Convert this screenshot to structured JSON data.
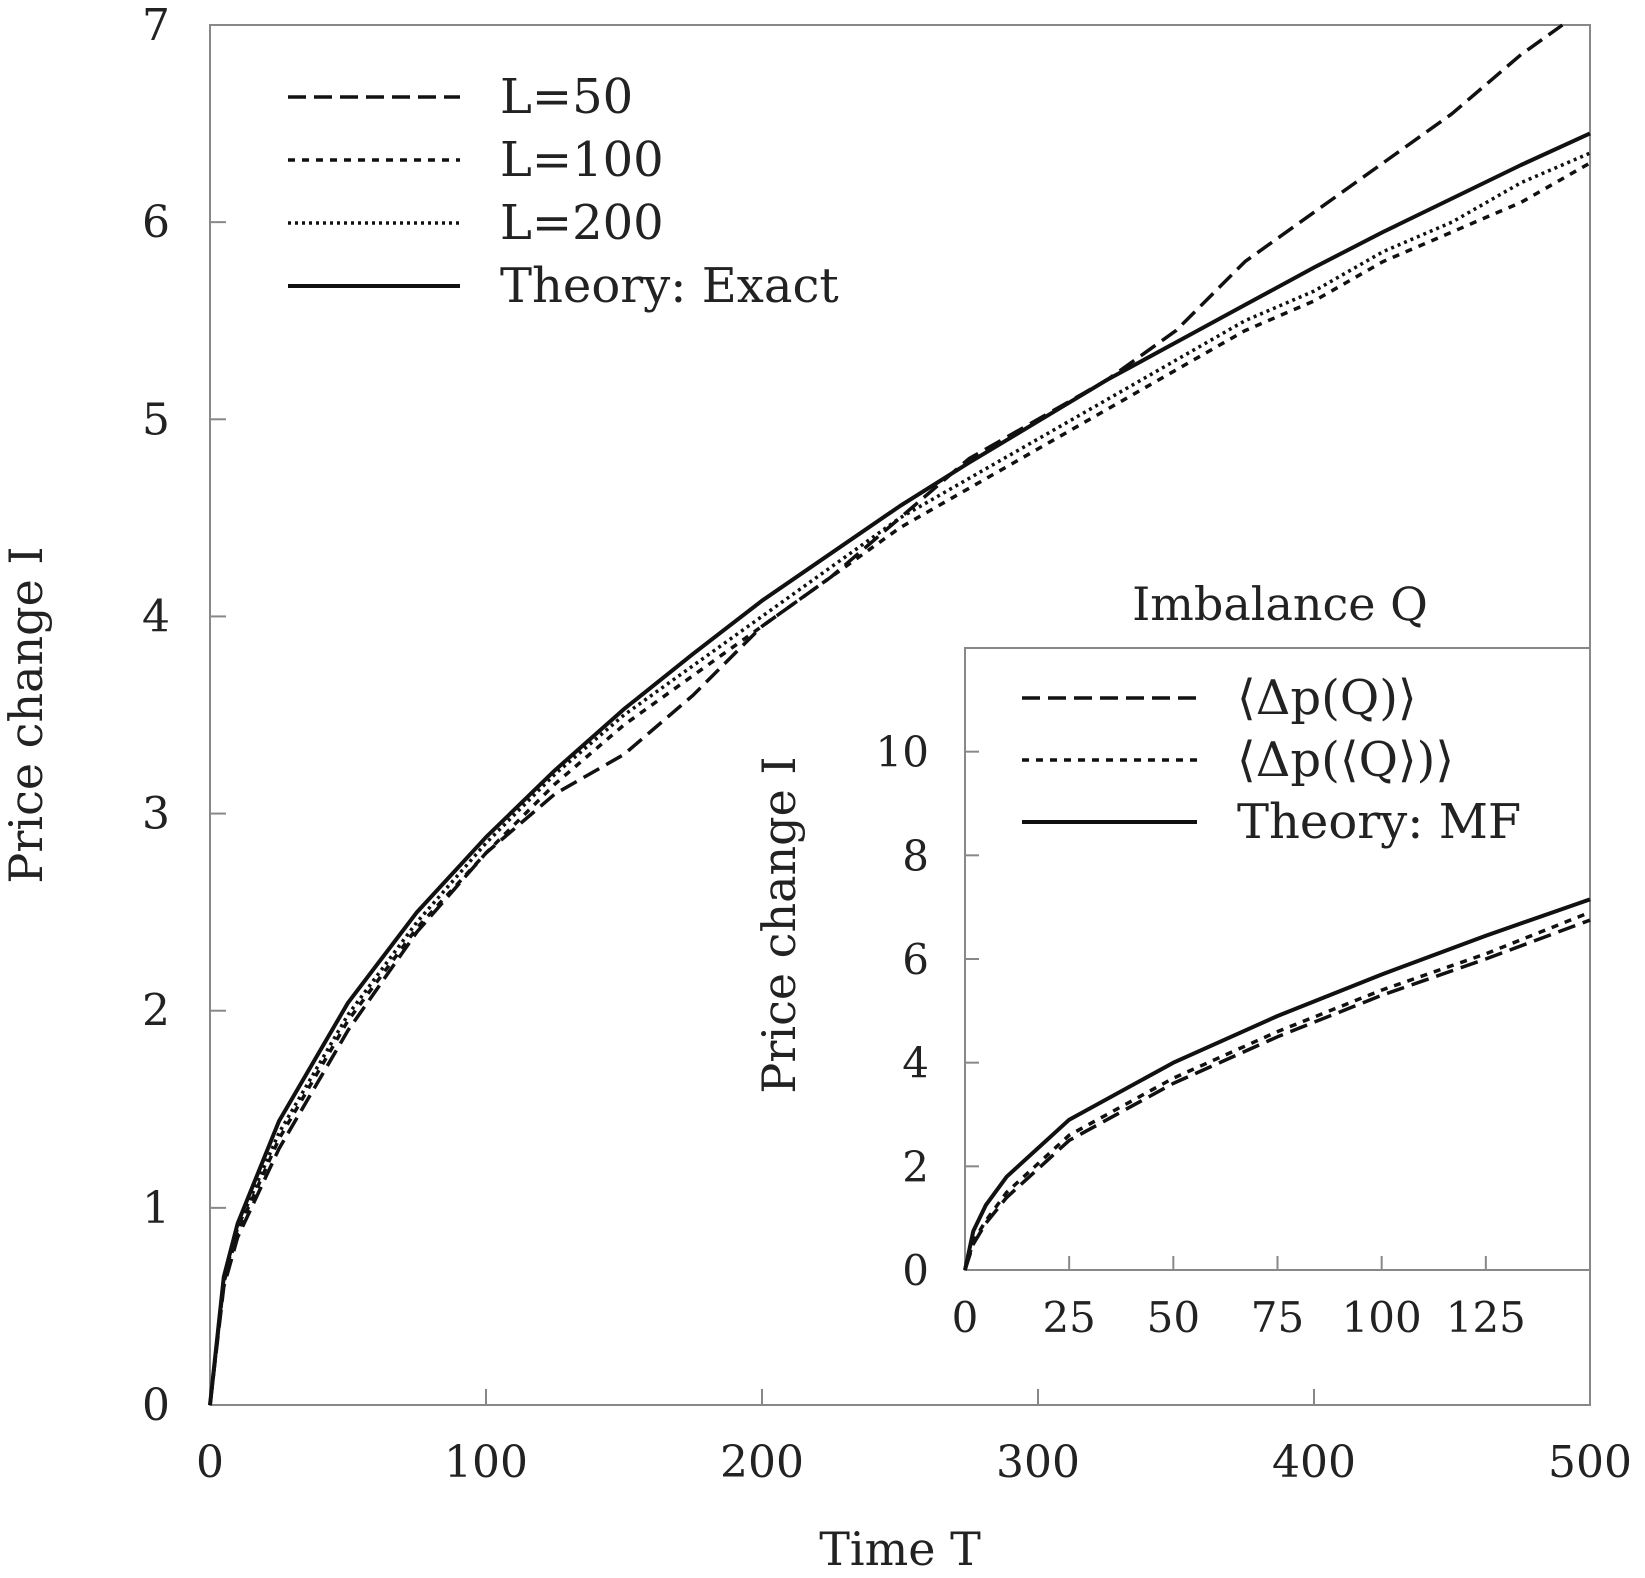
{
  "chart_data": [
    {
      "type": "line",
      "xlabel": "Time T",
      "ylabel": "Price change I",
      "xlim": [
        0,
        500
      ],
      "ylim": [
        0,
        7
      ],
      "xticks": [
        0,
        100,
        200,
        300,
        400,
        500
      ],
      "yticks": [
        0,
        1,
        2,
        3,
        4,
        5,
        6,
        7
      ],
      "grid": false,
      "legend_position": "top-left",
      "series": [
        {
          "name": "L=50",
          "dash": "dashed",
          "x": [
            0,
            5,
            10,
            25,
            50,
            75,
            100,
            125,
            150,
            175,
            200,
            225,
            250,
            275,
            300,
            325,
            350,
            375,
            400,
            425,
            450,
            475,
            490
          ],
          "y": [
            0,
            0.6,
            0.85,
            1.3,
            1.9,
            2.4,
            2.8,
            3.1,
            3.3,
            3.6,
            3.95,
            4.2,
            4.5,
            4.8,
            5.0,
            5.2,
            5.45,
            5.8,
            6.05,
            6.3,
            6.55,
            6.85,
            7.0
          ]
        },
        {
          "name": "L=100",
          "dash": "dotted",
          "x": [
            0,
            5,
            10,
            25,
            50,
            75,
            100,
            125,
            150,
            175,
            200,
            225,
            250,
            275,
            300,
            325,
            350,
            375,
            400,
            425,
            450,
            475,
            500
          ],
          "y": [
            0,
            0.62,
            0.88,
            1.35,
            1.95,
            2.42,
            2.8,
            3.15,
            3.45,
            3.7,
            3.95,
            4.2,
            4.45,
            4.65,
            4.85,
            5.05,
            5.25,
            5.45,
            5.6,
            5.8,
            5.95,
            6.1,
            6.3
          ]
        },
        {
          "name": "L=200",
          "dash": "fine-dotted",
          "x": [
            0,
            5,
            10,
            25,
            50,
            75,
            100,
            125,
            150,
            175,
            200,
            225,
            250,
            275,
            300,
            325,
            350,
            375,
            400,
            425,
            450,
            475,
            500
          ],
          "y": [
            0,
            0.64,
            0.9,
            1.38,
            1.98,
            2.45,
            2.85,
            3.2,
            3.5,
            3.75,
            4.0,
            4.25,
            4.5,
            4.7,
            4.9,
            5.1,
            5.3,
            5.5,
            5.65,
            5.85,
            6.0,
            6.2,
            6.35
          ]
        },
        {
          "name": "Theory: Exact",
          "dash": "solid",
          "x": [
            0,
            5,
            10,
            25,
            50,
            75,
            100,
            125,
            150,
            175,
            200,
            225,
            250,
            275,
            300,
            325,
            350,
            375,
            400,
            425,
            450,
            475,
            500
          ],
          "y": [
            0,
            0.65,
            0.92,
            1.44,
            2.04,
            2.5,
            2.88,
            3.22,
            3.53,
            3.81,
            4.08,
            4.32,
            4.56,
            4.78,
            4.99,
            5.2,
            5.39,
            5.58,
            5.77,
            5.95,
            6.12,
            6.29,
            6.45
          ]
        }
      ]
    },
    {
      "type": "line",
      "title": "Imbalance Q",
      "xlabel": "",
      "ylabel": "Price change I",
      "xlim": [
        0,
        150
      ],
      "ylim": [
        0,
        12
      ],
      "xticks": [
        0,
        25,
        50,
        75,
        100,
        125
      ],
      "yticks": [
        0,
        2,
        4,
        6,
        8,
        10
      ],
      "grid": false,
      "legend_position": "top-right",
      "series": [
        {
          "name": "⟨Δp(Q)⟩",
          "dash": "dashed",
          "x": [
            0,
            2,
            5,
            10,
            25,
            50,
            75,
            100,
            125,
            150
          ],
          "y": [
            0,
            0.5,
            0.9,
            1.4,
            2.5,
            3.6,
            4.5,
            5.3,
            6.0,
            6.75
          ]
        },
        {
          "name": "⟨Δp(⟨Q⟩)⟩",
          "dash": "dotted",
          "x": [
            0,
            2,
            5,
            10,
            25,
            50,
            75,
            100,
            125,
            150
          ],
          "y": [
            0,
            0.55,
            0.95,
            1.5,
            2.6,
            3.7,
            4.6,
            5.4,
            6.1,
            6.9
          ]
        },
        {
          "name": "Theory: MF",
          "dash": "solid",
          "x": [
            0,
            2,
            5,
            10,
            25,
            50,
            75,
            100,
            125,
            150
          ],
          "y": [
            0,
            0.75,
            1.25,
            1.8,
            2.9,
            4.0,
            4.9,
            5.7,
            6.45,
            7.15
          ]
        }
      ]
    }
  ]
}
